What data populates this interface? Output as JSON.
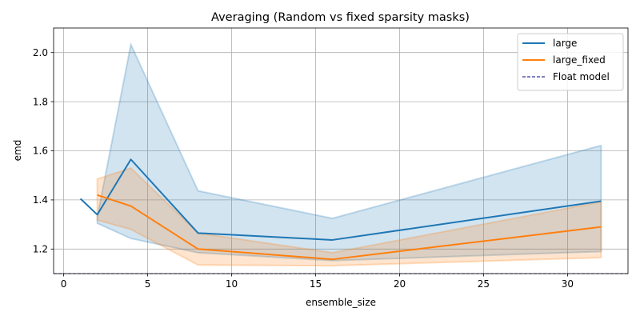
{
  "chart_data": {
    "type": "line",
    "title": "Averaging (Random vs fixed sparsity masks)",
    "xlabel": "ensemble_size",
    "ylabel": "emd",
    "xlim": [
      -0.6,
      33.6
    ],
    "ylim": [
      1.1,
      2.1
    ],
    "xticks": [
      0,
      5,
      10,
      15,
      20,
      25,
      30
    ],
    "yticks": [
      1.2,
      1.4,
      1.6,
      1.8,
      2.0
    ],
    "ytick_labels": [
      "1.2",
      "1.4",
      "1.6",
      "1.8",
      "2.0"
    ],
    "grid": true,
    "legend_position": "top-right",
    "series": [
      {
        "name": "large",
        "color": "#1f77b4",
        "x": [
          1,
          2,
          4,
          8,
          16,
          32
        ],
        "y": [
          1.405,
          1.34,
          1.565,
          1.265,
          1.237,
          1.395
        ],
        "band_x": [
          2,
          4,
          8,
          16,
          32
        ],
        "band_lower": [
          1.305,
          1.243,
          1.185,
          1.153,
          1.19
        ],
        "band_upper": [
          1.33,
          2.033,
          1.437,
          1.325,
          1.622
        ]
      },
      {
        "name": "large_fixed",
        "color": "#ff7f0e",
        "x": [
          2,
          4,
          8,
          16,
          32
        ],
        "y": [
          1.42,
          1.375,
          1.2,
          1.158,
          1.29
        ],
        "band_x": [
          2,
          4,
          8,
          16,
          32
        ],
        "band_lower": [
          1.318,
          1.28,
          1.135,
          1.132,
          1.165
        ],
        "band_upper": [
          1.485,
          1.53,
          1.265,
          1.185,
          1.392
        ]
      },
      {
        "name": "Float model",
        "color": "#000080",
        "style": "dashed",
        "y_constant": 1.1
      }
    ]
  }
}
